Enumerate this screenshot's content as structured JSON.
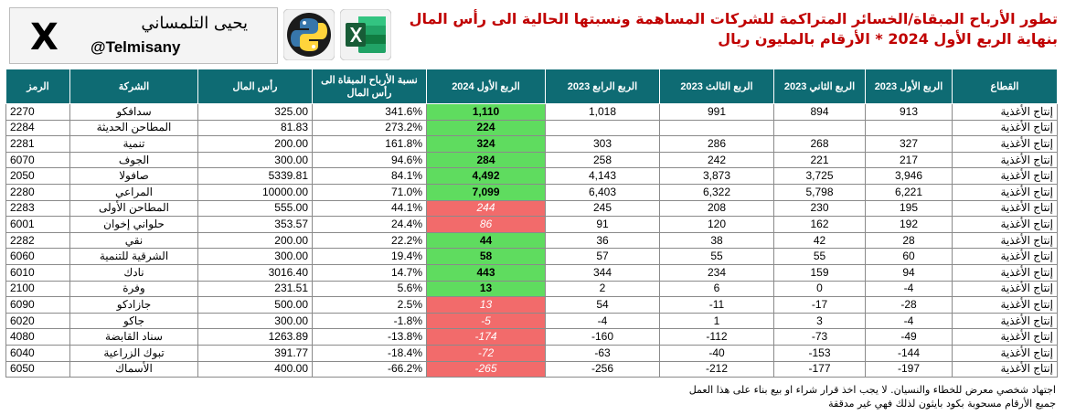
{
  "branding": {
    "name_ar": "يحيى التلمساني",
    "handle": "@Telmisany",
    "x_symbol": "X"
  },
  "title": {
    "line1": "تطور الأرباح المبقاة/الخسائر المتراكمة للشركات المساهمة ونسبتها الحالية الى رأس المال",
    "line2": "بنهاية الربع الأول 2024 * الأرقام بالمليون ريال"
  },
  "headers": {
    "symbol": "الرمز",
    "company": "الشركة",
    "capital": "رأس المال",
    "ratio": "نسبة الأرباح المبقاة الى رأس المال",
    "q1_2024": "الربع الأول 2024",
    "q4_2023": "الربع الرابع 2023",
    "q3_2023": "الربع الثالث 2023",
    "q2_2023": "الربع الثاني 2023",
    "q1_2023": "الربع الأول 2023",
    "sector": "القطاع"
  },
  "rows": [
    {
      "symbol": "2270",
      "company": "سدافكو",
      "capital": "325.00",
      "ratio": "341.6%",
      "q1_2024": "1,110",
      "q1_2024_sign": "pos",
      "q4_2023": "1,018",
      "q3_2023": "991",
      "q2_2023": "894",
      "q1_2023": "913",
      "sector": "إنتاج الأغذية"
    },
    {
      "symbol": "2284",
      "company": "المطاحن الحديثة",
      "capital": "81.83",
      "ratio": "273.2%",
      "q1_2024": "224",
      "q1_2024_sign": "pos",
      "q4_2023": "",
      "q3_2023": "",
      "q2_2023": "",
      "q1_2023": "",
      "sector": "إنتاج الأغذية"
    },
    {
      "symbol": "2281",
      "company": "تنمية",
      "capital": "200.00",
      "ratio": "161.8%",
      "q1_2024": "324",
      "q1_2024_sign": "pos",
      "q4_2023": "303",
      "q3_2023": "286",
      "q2_2023": "268",
      "q1_2023": "327",
      "sector": "إنتاج الأغذية"
    },
    {
      "symbol": "6070",
      "company": "الجوف",
      "capital": "300.00",
      "ratio": "94.6%",
      "q1_2024": "284",
      "q1_2024_sign": "pos",
      "q4_2023": "258",
      "q3_2023": "242",
      "q2_2023": "221",
      "q1_2023": "217",
      "sector": "إنتاج الأغذية"
    },
    {
      "symbol": "2050",
      "company": "صافولا",
      "capital": "5339.81",
      "ratio": "84.1%",
      "q1_2024": "4,492",
      "q1_2024_sign": "pos",
      "q4_2023": "4,143",
      "q3_2023": "3,873",
      "q2_2023": "3,725",
      "q1_2023": "3,946",
      "sector": "إنتاج الأغذية"
    },
    {
      "symbol": "2280",
      "company": "المراعي",
      "capital": "10000.00",
      "ratio": "71.0%",
      "q1_2024": "7,099",
      "q1_2024_sign": "pos",
      "q4_2023": "6,403",
      "q3_2023": "6,322",
      "q2_2023": "5,798",
      "q1_2023": "6,221",
      "sector": "إنتاج الأغذية"
    },
    {
      "symbol": "2283",
      "company": "المطاحن الأولى",
      "capital": "555.00",
      "ratio": "44.1%",
      "q1_2024": "244",
      "q1_2024_sign": "neg",
      "q4_2023": "245",
      "q3_2023": "208",
      "q2_2023": "230",
      "q1_2023": "195",
      "sector": "إنتاج الأغذية"
    },
    {
      "symbol": "6001",
      "company": "حلواني إخوان",
      "capital": "353.57",
      "ratio": "24.4%",
      "q1_2024": "86",
      "q1_2024_sign": "neg",
      "q4_2023": "91",
      "q3_2023": "120",
      "q2_2023": "162",
      "q1_2023": "192",
      "sector": "إنتاج الأغذية"
    },
    {
      "symbol": "2282",
      "company": "نقي",
      "capital": "200.00",
      "ratio": "22.2%",
      "q1_2024": "44",
      "q1_2024_sign": "pos",
      "q4_2023": "36",
      "q3_2023": "38",
      "q2_2023": "42",
      "q1_2023": "28",
      "sector": "إنتاج الأغذية"
    },
    {
      "symbol": "6060",
      "company": "الشرقية للتنمية",
      "capital": "300.00",
      "ratio": "19.4%",
      "q1_2024": "58",
      "q1_2024_sign": "pos",
      "q4_2023": "57",
      "q3_2023": "55",
      "q2_2023": "55",
      "q1_2023": "60",
      "sector": "إنتاج الأغذية"
    },
    {
      "symbol": "6010",
      "company": "نادك",
      "capital": "3016.40",
      "ratio": "14.7%",
      "q1_2024": "443",
      "q1_2024_sign": "pos",
      "q4_2023": "344",
      "q3_2023": "234",
      "q2_2023": "159",
      "q1_2023": "94",
      "sector": "إنتاج الأغذية"
    },
    {
      "symbol": "2100",
      "company": "وفرة",
      "capital": "231.51",
      "ratio": "5.6%",
      "q1_2024": "13",
      "q1_2024_sign": "pos",
      "q4_2023": "2",
      "q3_2023": "6",
      "q2_2023": "0",
      "q1_2023": "-4",
      "sector": "إنتاج الأغذية"
    },
    {
      "symbol": "6090",
      "company": "جازادكو",
      "capital": "500.00",
      "ratio": "2.5%",
      "q1_2024": "13",
      "q1_2024_sign": "neg",
      "q4_2023": "54",
      "q3_2023": "-11",
      "q2_2023": "-17",
      "q1_2023": "-28",
      "sector": "إنتاج الأغذية"
    },
    {
      "symbol": "6020",
      "company": "جاكو",
      "capital": "300.00",
      "ratio": "-1.8%",
      "q1_2024": "-5",
      "q1_2024_sign": "neg",
      "q4_2023": "-4",
      "q3_2023": "1",
      "q2_2023": "3",
      "q1_2023": "-4",
      "sector": "إنتاج الأغذية"
    },
    {
      "symbol": "4080",
      "company": "سناد القابضة",
      "capital": "1263.89",
      "ratio": "-13.8%",
      "q1_2024": "-174",
      "q1_2024_sign": "neg",
      "q4_2023": "-160",
      "q3_2023": "-112",
      "q2_2023": "-73",
      "q1_2023": "-49",
      "sector": "إنتاج الأغذية"
    },
    {
      "symbol": "6040",
      "company": "تبوك الزراعية",
      "capital": "391.77",
      "ratio": "-18.4%",
      "q1_2024": "-72",
      "q1_2024_sign": "neg",
      "q4_2023": "-63",
      "q3_2023": "-40",
      "q2_2023": "-153",
      "q1_2023": "-144",
      "sector": "إنتاج الأغذية"
    },
    {
      "symbol": "6050",
      "company": "الأسماك",
      "capital": "400.00",
      "ratio": "-66.2%",
      "q1_2024": "-265",
      "q1_2024_sign": "neg",
      "q4_2023": "-256",
      "q3_2023": "-212",
      "q2_2023": "-177",
      "q1_2023": "-197",
      "sector": "إنتاج الأغذية"
    }
  ],
  "notes": {
    "line1": "اجتهاد شخصي معرض للخطاء والنسيان. لا يجب اخذ قرار شراء او بيع بناء على هذا العمل",
    "line2": "جميع الأرقام مسحوبة بكود بايثون لذلك فهي غير مدققة"
  },
  "colors": {
    "header_bg": "#0e6b73",
    "positive_cell": "#5fdc5f",
    "negative_cell": "#f26b6b",
    "title_red": "#c00000"
  },
  "icons": {
    "python": "python-logo-icon",
    "excel": "excel-logo-icon",
    "x": "x-logo-icon"
  }
}
